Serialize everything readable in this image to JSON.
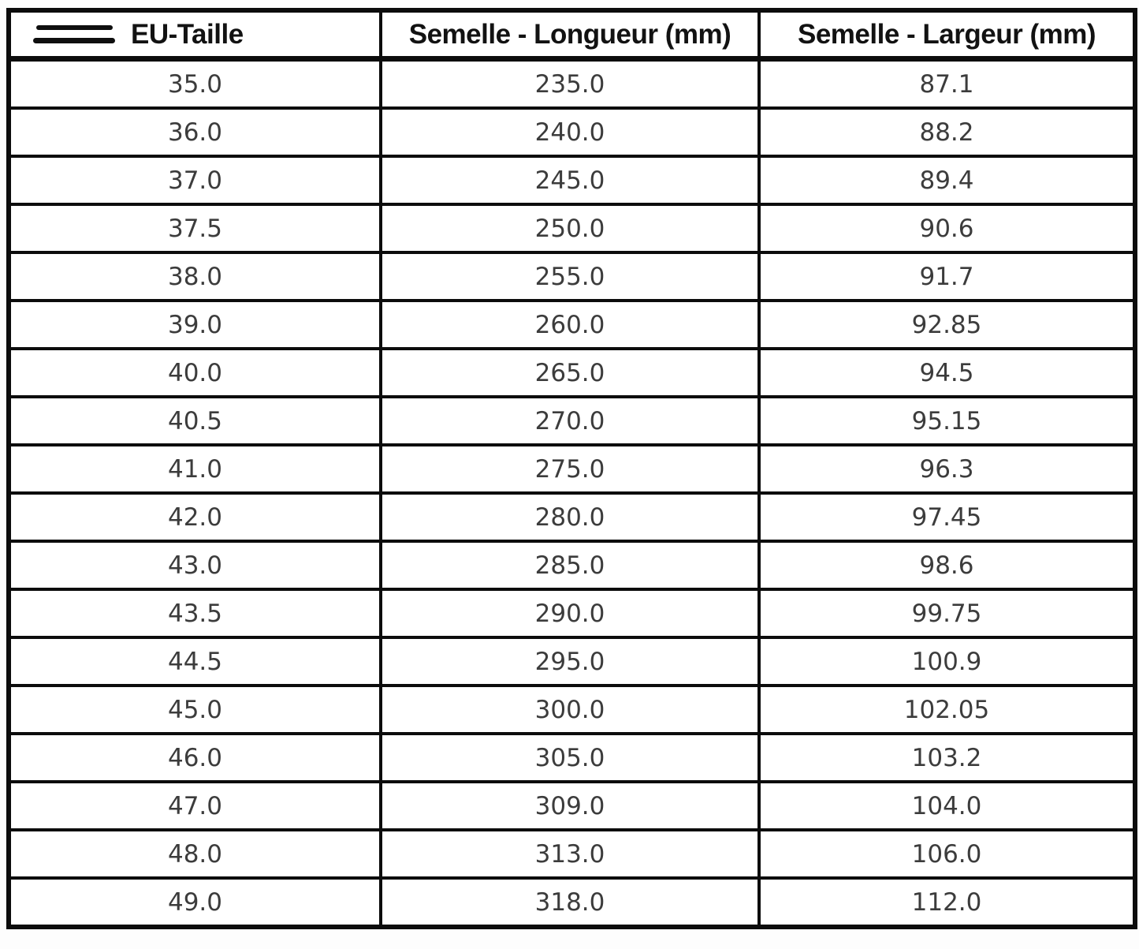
{
  "chart_data": {
    "type": "table",
    "columns": [
      "EU-Taille",
      "Semelle - Longueur (mm)",
      "Semelle - Largeur (mm)"
    ],
    "rows": [
      [
        "35.0",
        "235.0",
        "87.1"
      ],
      [
        "36.0",
        "240.0",
        "88.2"
      ],
      [
        "37.0",
        "245.0",
        "89.4"
      ],
      [
        "37.5",
        "250.0",
        "90.6"
      ],
      [
        "38.0",
        "255.0",
        "91.7"
      ],
      [
        "39.0",
        "260.0",
        "92.85"
      ],
      [
        "40.0",
        "265.0",
        "94.5"
      ],
      [
        "40.5",
        "270.0",
        "95.15"
      ],
      [
        "41.0",
        "275.0",
        "96.3"
      ],
      [
        "42.0",
        "280.0",
        "97.45"
      ],
      [
        "43.0",
        "285.0",
        "98.6"
      ],
      [
        "43.5",
        "290.0",
        "99.75"
      ],
      [
        "44.5",
        "295.0",
        "100.9"
      ],
      [
        "45.0",
        "300.0",
        "102.05"
      ],
      [
        "46.0",
        "305.0",
        "103.2"
      ],
      [
        "47.0",
        "309.0",
        "104.0"
      ],
      [
        "48.0",
        "313.0",
        "106.0"
      ],
      [
        "49.0",
        "318.0",
        "112.0"
      ]
    ],
    "title": "",
    "grid": "on",
    "legend": "none"
  },
  "icons": {
    "header_icon": "double-bar-icon"
  },
  "colors": {
    "border": "#0c0c0c",
    "header_text": "#121212",
    "data_text": "#3c3c3c",
    "cell_background": "#ffffff",
    "page_background": "#fdfdfd"
  }
}
